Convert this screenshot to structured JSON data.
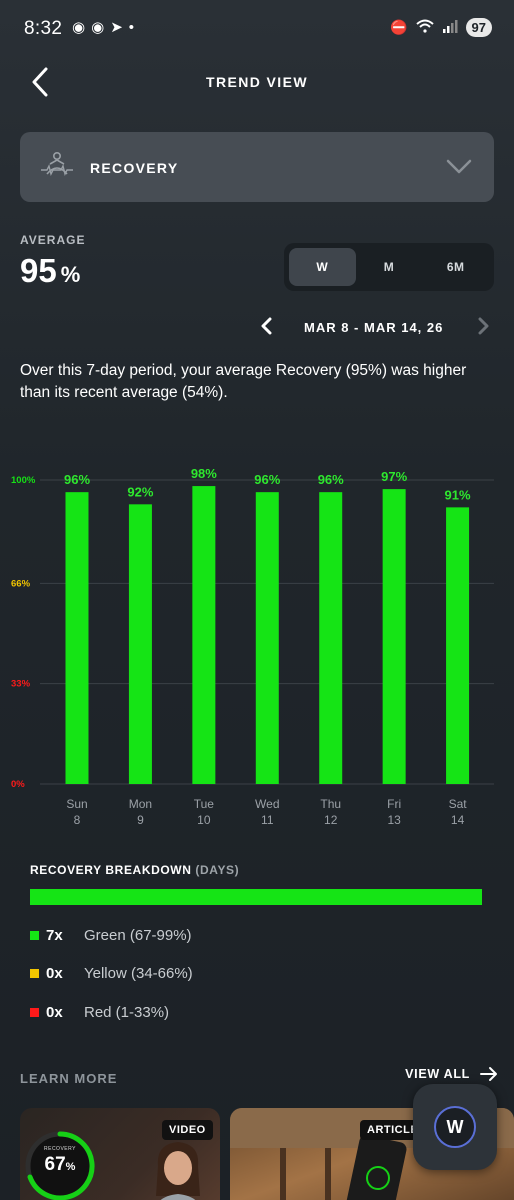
{
  "status_bar": {
    "time": "8:32",
    "battery": "97",
    "left_icons": [
      "discord-icon",
      "chat-icon",
      "telegram-icon",
      "dot-icon"
    ],
    "right_icons": [
      "dnd-icon",
      "wifi-icon",
      "signal-icon"
    ]
  },
  "header": {
    "title": "TREND VIEW"
  },
  "metric": {
    "label": "RECOVERY",
    "icon": "recovery-icon"
  },
  "average": {
    "label": "AVERAGE",
    "value": "95",
    "unit": "%"
  },
  "range_toggle": {
    "options": [
      "W",
      "M",
      "6M"
    ],
    "selected": "W"
  },
  "date_nav": {
    "range": "MAR 8 - MAR 14, 26"
  },
  "summary": "Over this 7-day period, your average Recovery (95%) was higher than its recent average (54%).",
  "chart_data": {
    "type": "bar",
    "categories": [
      "Sun 8",
      "Mon 9",
      "Tue 10",
      "Wed 11",
      "Thu 12",
      "Fri 13",
      "Sat 14"
    ],
    "day_names": [
      "Sun",
      "Mon",
      "Tue",
      "Wed",
      "Thu",
      "Fri",
      "Sat"
    ],
    "day_numbers": [
      "8",
      "9",
      "10",
      "11",
      "12",
      "13",
      "14"
    ],
    "values": [
      96,
      92,
      98,
      96,
      96,
      97,
      91
    ],
    "value_labels": [
      "96%",
      "92%",
      "98%",
      "96%",
      "96%",
      "97%",
      "91%"
    ],
    "ylim": [
      0,
      100
    ],
    "yticks": [
      {
        "value": 100,
        "label": "100%",
        "color": "#16e016"
      },
      {
        "value": 66,
        "label": "66%",
        "color": "#f2c500"
      },
      {
        "value": 33,
        "label": "33%",
        "color": "#ff1a1a"
      },
      {
        "value": 0,
        "label": "0%",
        "color": "#ff1a1a"
      }
    ],
    "bar_color": "#15e415",
    "label_color": "#2ee82e",
    "grid": true
  },
  "breakdown": {
    "title": "RECOVERY BREAKDOWN",
    "subtitle": "(DAYS)",
    "green_fraction": 1.0,
    "items": [
      {
        "count": "7x",
        "label": "Green (67-99%)",
        "color": "#15e415"
      },
      {
        "count": "0x",
        "label": "Yellow (34-66%)",
        "color": "#f2c500"
      },
      {
        "count": "0x",
        "label": "Red (1-33%)",
        "color": "#ff1a1a"
      }
    ]
  },
  "learn_more": {
    "title": "LEARN MORE",
    "view_all": "VIEW ALL",
    "cards": [
      {
        "tag": "VIDEO",
        "ring_label": "RECOVERY",
        "ring_value": "67",
        "ring_unit": "%"
      },
      {
        "tag": "ARTICLE"
      }
    ]
  },
  "fab": {
    "label": "W"
  }
}
